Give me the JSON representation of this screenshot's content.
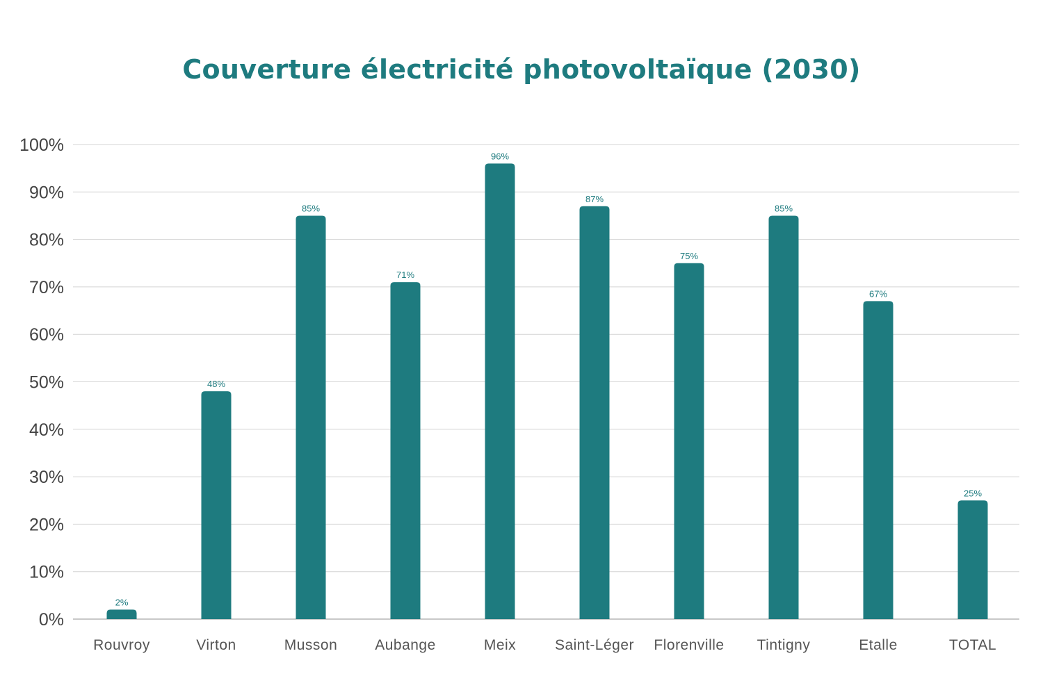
{
  "chart_data": {
    "type": "bar",
    "title": "Couverture électricité photovoltaïque (2030)",
    "categories": [
      "Rouvroy",
      "Virton",
      "Musson",
      "Aubange",
      "Meix",
      "Saint-Léger",
      "Florenville",
      "Tintigny",
      "Etalle",
      "TOTAL"
    ],
    "values": [
      2,
      48,
      85,
      71,
      96,
      87,
      75,
      85,
      67,
      25
    ],
    "data_labels": [
      "2%",
      "48%",
      "85%",
      "71%",
      "96%",
      "87%",
      "75%",
      "85%",
      "67%",
      "25%"
    ],
    "ylim": [
      0,
      100
    ],
    "yticks": [
      0,
      10,
      20,
      30,
      40,
      50,
      60,
      70,
      80,
      90,
      100
    ],
    "ytick_labels": [
      "0%",
      "10%",
      "20%",
      "30%",
      "40%",
      "50%",
      "60%",
      "70%",
      "80%",
      "90%",
      "100%"
    ],
    "xlabel": "",
    "ylabel": "",
    "grid": true,
    "legend": "none",
    "colors": {
      "bar": "#1e7b7f",
      "title": "#1e7b7f",
      "grid": "#d4d4d4",
      "axis": "#c8c8c8"
    }
  }
}
